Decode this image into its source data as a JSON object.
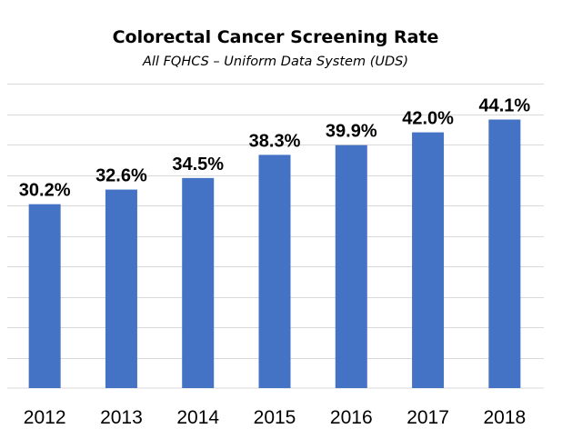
{
  "chart_data": {
    "type": "bar",
    "title": "Colorectal Cancer Screening Rate",
    "subtitle": "All FQHCS – Uniform Data System (UDS)",
    "categories": [
      "2012",
      "2013",
      "2014",
      "2015",
      "2016",
      "2017",
      "2018"
    ],
    "values": [
      30.2,
      32.6,
      34.5,
      38.3,
      39.9,
      42.0,
      44.1
    ],
    "data_labels": [
      "30.2%",
      "32.6%",
      "34.5%",
      "38.3%",
      "39.9%",
      "42.0%",
      "44.1%"
    ],
    "xlabel": "",
    "ylabel": "",
    "ylim": [
      0,
      50
    ],
    "grid": true,
    "legend": "none",
    "bar_color": "#4472c4"
  }
}
